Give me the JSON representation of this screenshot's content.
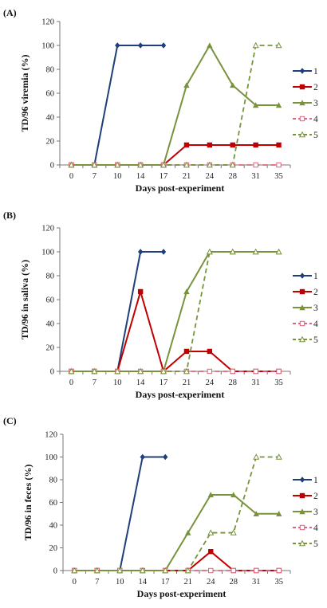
{
  "chart_data": [
    {
      "panel": "(A)",
      "type": "line",
      "categories": [
        "0",
        "7",
        "10",
        "14",
        "17",
        "21",
        "24",
        "28",
        "31",
        "35"
      ],
      "ylabel": "TD/96 viremia (%)",
      "xlabel": "Days post-experiment",
      "ylim": [
        0,
        120
      ],
      "yticks": [
        0,
        20,
        40,
        60,
        80,
        100,
        120
      ],
      "legend_position": "right",
      "series": [
        {
          "name": "1",
          "color": "#1f3f7a",
          "dashed": false,
          "marker": "diamond",
          "values": [
            0,
            0,
            100,
            100,
            100,
            null,
            null,
            null,
            null,
            null
          ]
        },
        {
          "name": "2",
          "color": "#c00000",
          "dashed": false,
          "marker": "square",
          "values": [
            0,
            0,
            0,
            0,
            0,
            16.7,
            16.7,
            16.7,
            16.7,
            16.7
          ]
        },
        {
          "name": "3",
          "color": "#77933c",
          "dashed": false,
          "marker": "triangle",
          "values": [
            0,
            0,
            0,
            0,
            0,
            66.7,
            100,
            66.7,
            50,
            50
          ]
        },
        {
          "name": "4",
          "color": "#d9667a",
          "dashed": true,
          "marker": "open-square",
          "values": [
            0,
            0,
            0,
            0,
            0,
            0,
            0,
            0,
            0,
            0
          ]
        },
        {
          "name": "5",
          "color": "#77933c",
          "dashed": true,
          "marker": "open-triangle",
          "values": [
            0,
            0,
            0,
            0,
            0,
            0,
            0,
            0,
            100,
            100
          ]
        }
      ]
    },
    {
      "panel": "(B)",
      "type": "line",
      "categories": [
        "0",
        "7",
        "10",
        "14",
        "17",
        "21",
        "24",
        "28",
        "31",
        "35"
      ],
      "ylabel": "TD/96 in saliva (%)",
      "xlabel": "Days post-experiment",
      "ylim": [
        0,
        120
      ],
      "yticks": [
        0,
        20,
        40,
        60,
        80,
        100,
        120
      ],
      "legend_position": "right",
      "series": [
        {
          "name": "1",
          "color": "#1f3f7a",
          "dashed": false,
          "marker": "diamond",
          "values": [
            0,
            0,
            0,
            100,
            100,
            null,
            null,
            null,
            null,
            null
          ]
        },
        {
          "name": "2",
          "color": "#c00000",
          "dashed": false,
          "marker": "square",
          "values": [
            0,
            0,
            0,
            66.7,
            0,
            16.7,
            16.7,
            0,
            0,
            0
          ]
        },
        {
          "name": "3",
          "color": "#77933c",
          "dashed": false,
          "marker": "triangle",
          "values": [
            0,
            0,
            0,
            0,
            0,
            66.7,
            100,
            100,
            100,
            100
          ]
        },
        {
          "name": "4",
          "color": "#d9667a",
          "dashed": true,
          "marker": "open-square",
          "values": [
            0,
            0,
            0,
            0,
            0,
            0,
            0,
            0,
            0,
            0
          ]
        },
        {
          "name": "5",
          "color": "#77933c",
          "dashed": true,
          "marker": "open-triangle",
          "values": [
            0,
            0,
            0,
            0,
            0,
            0,
            100,
            100,
            100,
            100
          ]
        }
      ]
    },
    {
      "panel": "(C)",
      "type": "line",
      "categories": [
        "0",
        "7",
        "10",
        "14",
        "17",
        "21",
        "24",
        "28",
        "31",
        "35"
      ],
      "ylabel": "TD/96 in feces (%)",
      "xlabel": "Days post-experiment",
      "ylim": [
        0,
        120
      ],
      "yticks": [
        0,
        20,
        40,
        60,
        80,
        100,
        120
      ],
      "legend_position": "right",
      "series": [
        {
          "name": "1",
          "color": "#1f3f7a",
          "dashed": false,
          "marker": "diamond",
          "values": [
            0,
            0,
            0,
            100,
            100,
            null,
            null,
            null,
            null,
            null
          ]
        },
        {
          "name": "2",
          "color": "#c00000",
          "dashed": false,
          "marker": "square",
          "values": [
            0,
            0,
            0,
            0,
            0,
            0,
            16.7,
            0,
            0,
            0
          ]
        },
        {
          "name": "3",
          "color": "#77933c",
          "dashed": false,
          "marker": "triangle",
          "values": [
            0,
            0,
            0,
            0,
            0,
            33.3,
            66.7,
            66.7,
            50,
            50
          ]
        },
        {
          "name": "4",
          "color": "#d9667a",
          "dashed": true,
          "marker": "open-square",
          "values": [
            0,
            0,
            0,
            0,
            0,
            0,
            0,
            0,
            0,
            0
          ]
        },
        {
          "name": "5",
          "color": "#77933c",
          "dashed": true,
          "marker": "open-triangle",
          "values": [
            0,
            0,
            0,
            0,
            0,
            0,
            33.3,
            33.3,
            100,
            100
          ]
        }
      ]
    }
  ]
}
